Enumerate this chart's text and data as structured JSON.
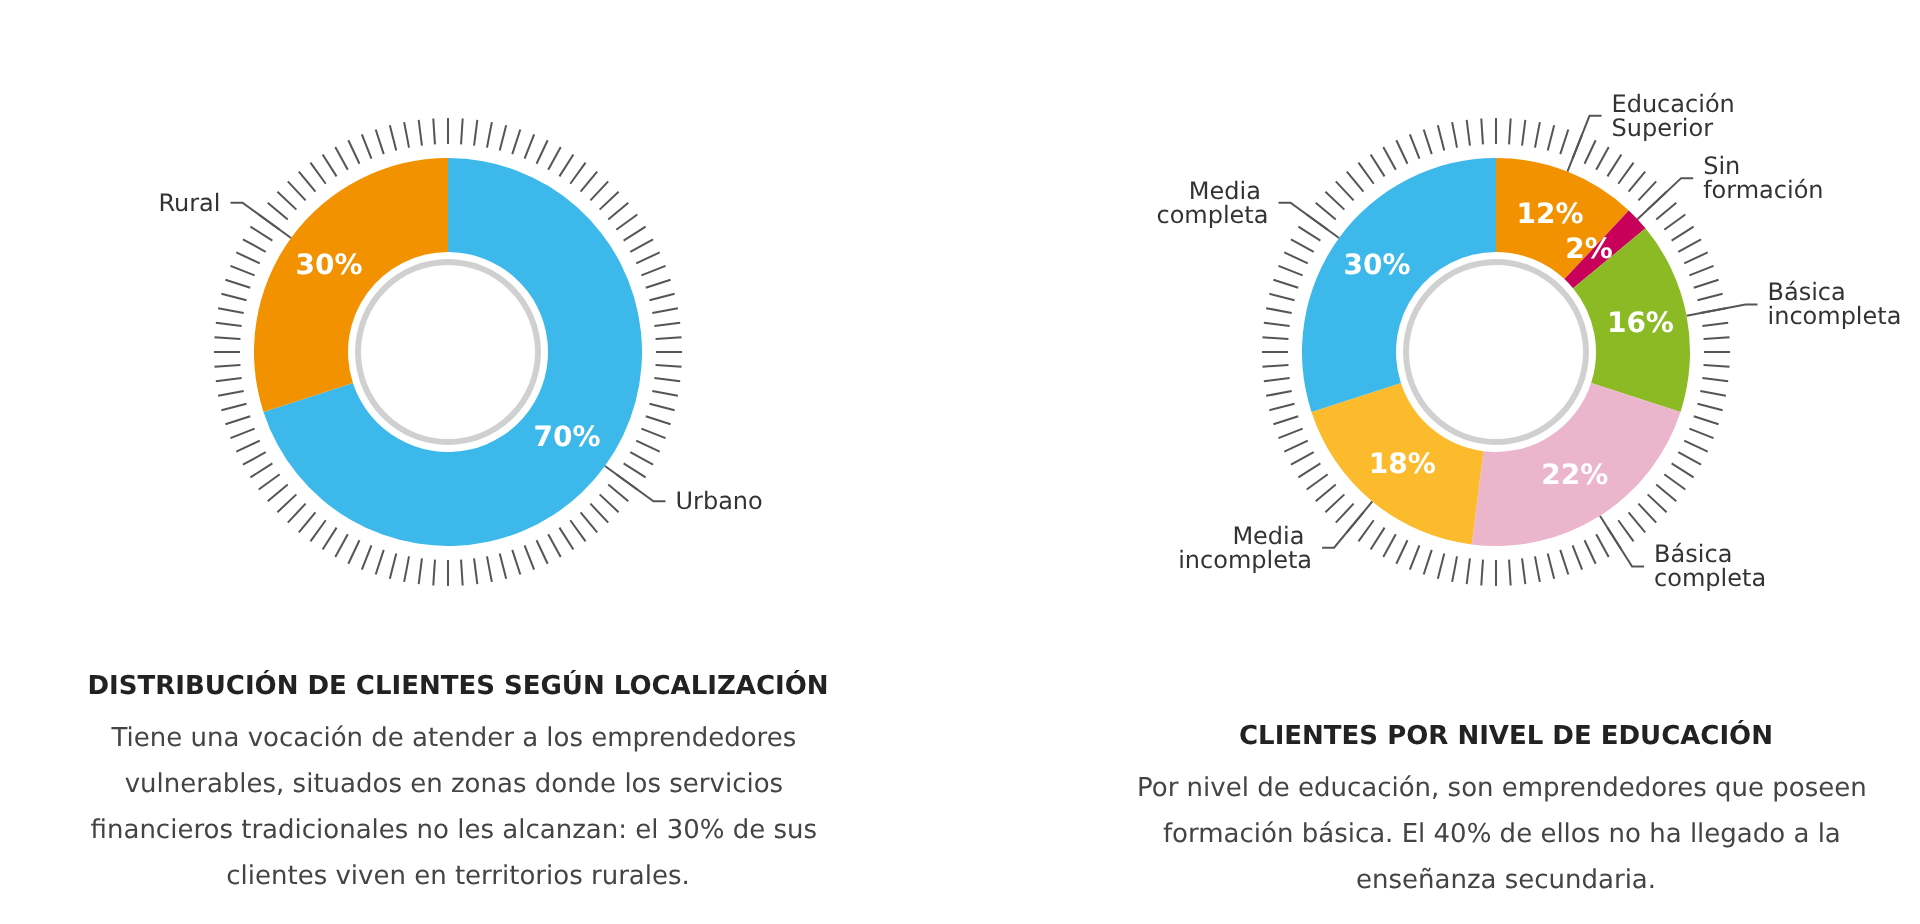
{
  "chart_data": [
    {
      "type": "donut",
      "title": "DISTRIBUCIÓN DE CLIENTES SEGÚN LOCALIZACIÓN",
      "subtitle": "Tiene una vocación de atender a los emprendedores vulnerables, situados en zonas donde los servicios financieros tradicionales no les alcanzan: el 30% de sus clientes viven en territorios rurales.",
      "categories": [
        "Urbano",
        "Rural"
      ],
      "values": [
        70,
        30
      ],
      "colors": [
        "#3db8ea",
        "#f39200"
      ],
      "value_labels": [
        "70%",
        "30%"
      ]
    },
    {
      "type": "donut",
      "title": "CLIENTES POR NIVEL DE EDUCACIÓN",
      "subtitle": "Por nivel de educación, son emprendedores que poseen formación básica. El 40% de ellos no ha llegado a la enseñanza secundaria.",
      "categories": [
        "Educación Superior",
        "Sin formación",
        "Básica incompleta",
        "Básica completa",
        "Media incompleta",
        "Media completa"
      ],
      "values": [
        12,
        2,
        16,
        22,
        18,
        30
      ],
      "colors": [
        "#f39200",
        "#c8005a",
        "#8cba25",
        "#ebb5cb",
        "#fbbb2c",
        "#3db8ea"
      ],
      "value_labels": [
        "12%",
        "2%",
        "16%",
        "22%",
        "18%",
        "30%"
      ]
    }
  ]
}
